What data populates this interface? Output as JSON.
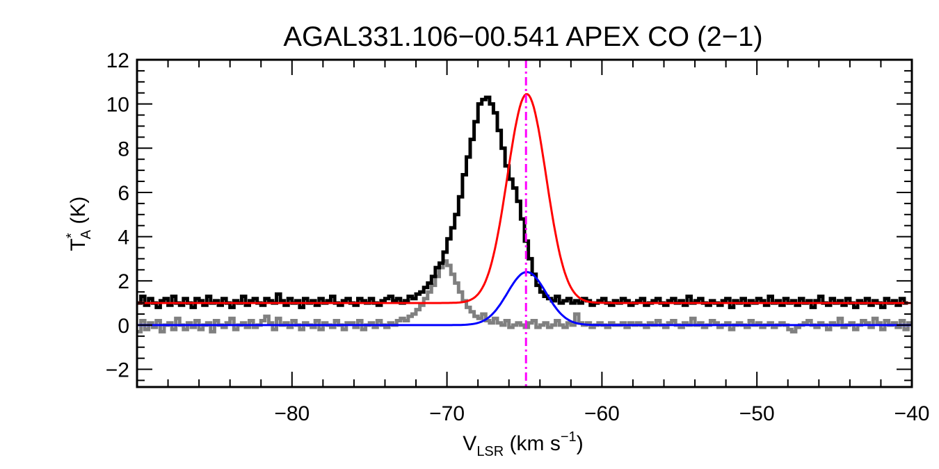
{
  "chart_data": {
    "type": "line",
    "title": "AGAL331.106−00.541   APEX CO (2−1)",
    "xlabel": {
      "main": "V",
      "sub": "LSR",
      "rest": " (km s",
      "sup": "−1",
      "end": ")"
    },
    "ylabel": {
      "main": "T",
      "sup": "*",
      "sub": "A",
      "rest": " (K)"
    },
    "xlim": [
      -90,
      -40
    ],
    "ylim": [
      -2.8,
      12.0
    ],
    "x_ticks": [
      {
        "value": -80,
        "label": "−80"
      },
      {
        "value": -70,
        "label": "−70"
      },
      {
        "value": -60,
        "label": "−60"
      },
      {
        "value": -50,
        "label": "−50"
      },
      {
        "value": -40,
        "label": "−40"
      }
    ],
    "y_ticks": [
      {
        "value": -2,
        "label": "−2"
      },
      {
        "value": 0,
        "label": "0"
      },
      {
        "value": 2,
        "label": "2"
      },
      {
        "value": 4,
        "label": "4"
      },
      {
        "value": 6,
        "label": "6"
      },
      {
        "value": 8,
        "label": "8"
      },
      {
        "value": 10,
        "label": "10"
      },
      {
        "value": 12,
        "label": "12"
      }
    ],
    "x_minor_step": 2,
    "y_minor_step": 0.5,
    "vline": {
      "x": -64.9,
      "color": "#ff00ff",
      "style": "dash-dot"
    },
    "series": [
      {
        "style": "step",
        "color": "#808080",
        "offset": 0.0,
        "x_start": -90.0,
        "x_step": 0.25,
        "values": [
          -0.3,
          0.2,
          -0.2,
          0.1,
          -0.1,
          0.2,
          -0.3,
          0.0,
          0.1,
          -0.2,
          0.3,
          0.0,
          -0.2,
          0.1,
          -0.1,
          0.2,
          -0.2,
          0.0,
          0.1,
          -0.3,
          0.2,
          0.0,
          -0.1,
          0.1,
          0.3,
          -0.2,
          0.0,
          0.1,
          -0.1,
          0.2,
          -0.1,
          0.0,
          0.2,
          0.4,
          0.1,
          -0.2,
          0.3,
          0.0,
          0.1,
          -0.1,
          0.2,
          0.0,
          -0.2,
          0.1,
          0.0,
          -0.1,
          0.2,
          -0.2,
          0.1,
          0.0,
          -0.1,
          0.2,
          0.0,
          -0.2,
          0.1,
          0.1,
          -0.1,
          0.2,
          -0.2,
          0.0,
          0.1,
          -0.1,
          0.2,
          0.0,
          -0.1,
          0.1,
          0.0,
          0.2,
          0.3,
          0.2,
          0.4,
          0.5,
          0.7,
          0.9,
          1.2,
          1.5,
          1.8,
          2.2,
          2.6,
          2.9,
          2.7,
          2.3,
          1.9,
          1.5,
          1.1,
          0.8,
          0.6,
          0.4,
          0.3,
          0.5,
          0.2,
          0.1,
          0.3,
          0.1,
          0.0,
          0.2,
          -0.1,
          0.0,
          0.1,
          0.0,
          -0.1,
          0.1,
          0.2,
          -0.1,
          0.0,
          0.1,
          -0.1,
          0.0,
          0.2,
          0.0,
          -0.1,
          0.1,
          0.0,
          0.5,
          0.1,
          0.0,
          0.1,
          -0.1,
          0.0,
          0.1,
          0.0,
          -0.1,
          0.1,
          0.0,
          0.0,
          0.1,
          -0.1,
          0.1,
          0.0,
          0.1,
          0.0,
          -0.1,
          0.1,
          0.0,
          0.2,
          0.0,
          -0.1,
          0.1,
          0.2,
          0.0,
          -0.1,
          0.1,
          0.0,
          0.3,
          0.0,
          0.1,
          -0.1,
          0.0,
          0.2,
          0.1,
          -0.1,
          0.0,
          0.1,
          -0.2,
          0.0,
          0.1,
          0.0,
          -0.1,
          0.2,
          0.0,
          0.1,
          -0.1,
          0.0,
          0.1,
          -0.1,
          0.0,
          0.1,
          0.0,
          -0.2,
          -0.3,
          -0.1,
          0.0,
          0.1,
          0.2,
          0.0,
          -0.1,
          0.1,
          0.0,
          -0.2,
          0.1,
          0.0,
          0.3,
          -0.1,
          0.0,
          0.1,
          -0.2,
          0.0,
          0.2,
          0.1,
          -0.1,
          0.3,
          0.1,
          -0.2,
          0.2,
          0.0,
          0.1,
          -0.1,
          0.2,
          -0.2,
          0.1
        ]
      },
      {
        "style": "step",
        "color": "#000000",
        "offset": 1.0,
        "x_start": -90.0,
        "x_step": 0.25,
        "values": [
          0.0,
          0.3,
          -0.1,
          0.2,
          0.0,
          -0.2,
          0.1,
          0.2,
          -0.1,
          0.3,
          0.0,
          -0.1,
          0.2,
          0.0,
          -0.2,
          0.2,
          0.1,
          -0.1,
          0.3,
          0.0,
          0.1,
          -0.1,
          0.2,
          0.0,
          -0.2,
          0.1,
          0.0,
          0.3,
          -0.1,
          0.1,
          0.2,
          0.0,
          -0.1,
          0.2,
          0.1,
          0.0,
          0.4,
          0.1,
          -0.1,
          0.2,
          0.0,
          0.1,
          -0.2,
          0.2,
          0.0,
          0.1,
          -0.1,
          0.2,
          0.0,
          0.1,
          0.3,
          0.0,
          -0.1,
          0.1,
          0.2,
          0.0,
          -0.1,
          0.2,
          0.1,
          0.0,
          0.2,
          0.0,
          -0.1,
          0.1,
          0.2,
          0.3,
          0.1,
          0.2,
          0.0,
          0.1,
          0.3,
          0.2,
          0.4,
          0.5,
          0.7,
          0.9,
          1.2,
          1.6,
          1.8,
          2.3,
          2.9,
          3.4,
          4.0,
          4.8,
          5.8,
          6.6,
          7.4,
          8.2,
          9.0,
          9.2,
          9.3,
          9.0,
          8.6,
          7.8,
          7.0,
          6.2,
          5.6,
          5.2,
          4.6,
          3.8,
          2.8,
          2.0,
          1.3,
          0.8,
          0.5,
          0.3,
          0.2,
          0.1,
          0.3,
          0.0,
          0.1,
          0.2,
          0.0,
          0.1,
          0.0,
          0.2,
          0.1,
          -0.1,
          0.0,
          0.1,
          0.2,
          0.0,
          -0.1,
          0.1,
          0.0,
          0.2,
          0.1,
          -0.1,
          0.0,
          0.1,
          0.2,
          -0.1,
          0.0,
          0.1,
          0.2,
          0.0,
          -0.1,
          0.1,
          0.2,
          0.0,
          0.1,
          -0.1,
          0.3,
          0.0,
          0.1,
          0.2,
          0.0,
          -0.1,
          0.1,
          0.0,
          -0.1,
          0.1,
          0.2,
          -0.2,
          0.1,
          0.0,
          0.2,
          -0.1,
          0.1,
          0.0,
          0.2,
          0.1,
          -0.1,
          0.3,
          0.0,
          0.1,
          -0.1,
          0.2,
          0.0,
          0.1,
          -0.1,
          0.2,
          0.0,
          0.1,
          -0.2,
          0.1,
          0.3,
          0.0,
          -0.1,
          0.2,
          0.0,
          0.1,
          -0.1,
          0.2,
          0.0,
          -0.2,
          0.1,
          0.0,
          0.2,
          -0.1,
          0.1,
          0.0,
          -0.2,
          0.2,
          0.0,
          0.1,
          -0.1,
          0.2,
          0.0
        ]
      },
      {
        "style": "gaussian",
        "color": "#ff0000",
        "offset": 1.0,
        "amplitude": 9.45,
        "center": -64.85,
        "sigma": 1.25
      },
      {
        "style": "gaussian",
        "color": "#0000ff",
        "offset": 0.0,
        "amplitude": 2.4,
        "center": -64.85,
        "sigma": 1.25
      }
    ]
  }
}
